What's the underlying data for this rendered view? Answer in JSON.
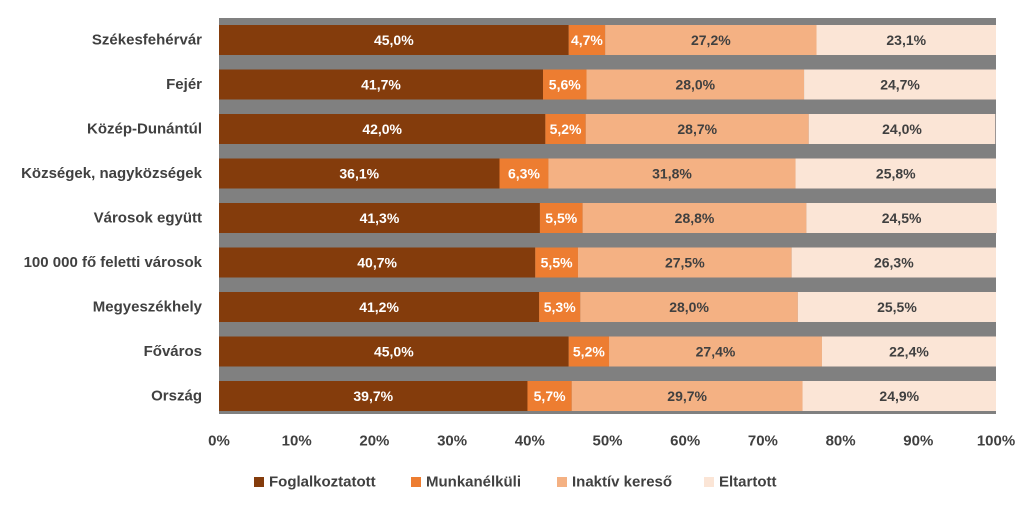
{
  "chart_data": {
    "type": "bar",
    "orientation": "horizontal",
    "stacked": "percent",
    "categories": [
      "Székesfehérvár",
      "Fejér",
      "Közép-Dunántúl",
      "Községek, nagyközségek",
      "Városok együtt",
      "100 000 fő feletti városok",
      "Megyeszékhely",
      "Főváros",
      "Ország"
    ],
    "series": [
      {
        "name": "Foglalkoztatott",
        "color": "#843c0c",
        "label_color": "#ffffff",
        "values": [
          45.0,
          41.7,
          42.0,
          36.1,
          41.3,
          40.7,
          41.2,
          45.0,
          39.7
        ],
        "labels": [
          "45,0%",
          "41,7%",
          "42,0%",
          "36,1%",
          "41,3%",
          "40,7%",
          "41,2%",
          "45,0%",
          "39,7%"
        ]
      },
      {
        "name": "Munkanélküli",
        "color": "#ed7d31",
        "label_color": "#ffffff",
        "values": [
          4.7,
          5.6,
          5.2,
          6.3,
          5.5,
          5.5,
          5.3,
          5.2,
          5.7
        ],
        "labels": [
          "4,7%",
          "5,6%",
          "5,2%",
          "6,3%",
          "5,5%",
          "5,5%",
          "5,3%",
          "5,2%",
          "5,7%"
        ]
      },
      {
        "name": "Inaktív kereső",
        "color": "#f4b183",
        "label_color": "#404040",
        "values": [
          27.2,
          28.0,
          28.7,
          31.8,
          28.8,
          27.5,
          28.0,
          27.4,
          29.7
        ],
        "labels": [
          "27,2%",
          "28,0%",
          "28,7%",
          "31,8%",
          "28,8%",
          "27,5%",
          "28,0%",
          "27,4%",
          "29,7%"
        ]
      },
      {
        "name": "Eltartott",
        "color": "#fbe5d6",
        "label_color": "#404040",
        "values": [
          23.1,
          24.7,
          24.0,
          25.8,
          24.5,
          26.3,
          25.5,
          22.4,
          24.9
        ],
        "labels": [
          "23,1%",
          "24,7%",
          "24,0%",
          "25,8%",
          "24,5%",
          "26,3%",
          "25,5%",
          "22,4%",
          "24,9%"
        ]
      }
    ],
    "x_ticks": [
      "0%",
      "10%",
      "20%",
      "30%",
      "40%",
      "50%",
      "60%",
      "70%",
      "80%",
      "90%",
      "100%"
    ],
    "xlim": [
      0,
      100
    ],
    "plot_background": "#808080",
    "legend_position": "bottom",
    "grid": false
  }
}
